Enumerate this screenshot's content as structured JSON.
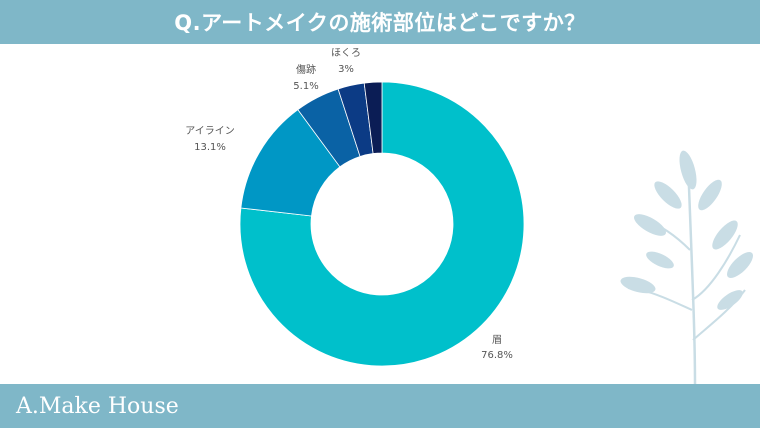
{
  "header": {
    "title": "Q.アートメイクの施術部位はどこですか？"
  },
  "footer": {
    "brand": "A.Make House"
  },
  "colors": {
    "banner": "#7fb7c8",
    "plant": "#c9dde5"
  },
  "chart_data": {
    "type": "pie",
    "donut": true,
    "title": "",
    "slices": [
      {
        "label": "眉",
        "value": 76.8,
        "display": "76.8%",
        "color": "#00c0cb"
      },
      {
        "label": "アイライン",
        "value": 13.1,
        "display": "13.1%",
        "color": "#0097c5"
      },
      {
        "label": "傷跡",
        "value": 5.1,
        "display": "5.1%",
        "color": "#0a62a5"
      },
      {
        "label": "ほくろ",
        "value": 3,
        "display": "3%",
        "color": "#0c3b85"
      },
      {
        "label": "",
        "value": 2.0,
        "display": "",
        "color": "#0b1d55"
      }
    ]
  }
}
